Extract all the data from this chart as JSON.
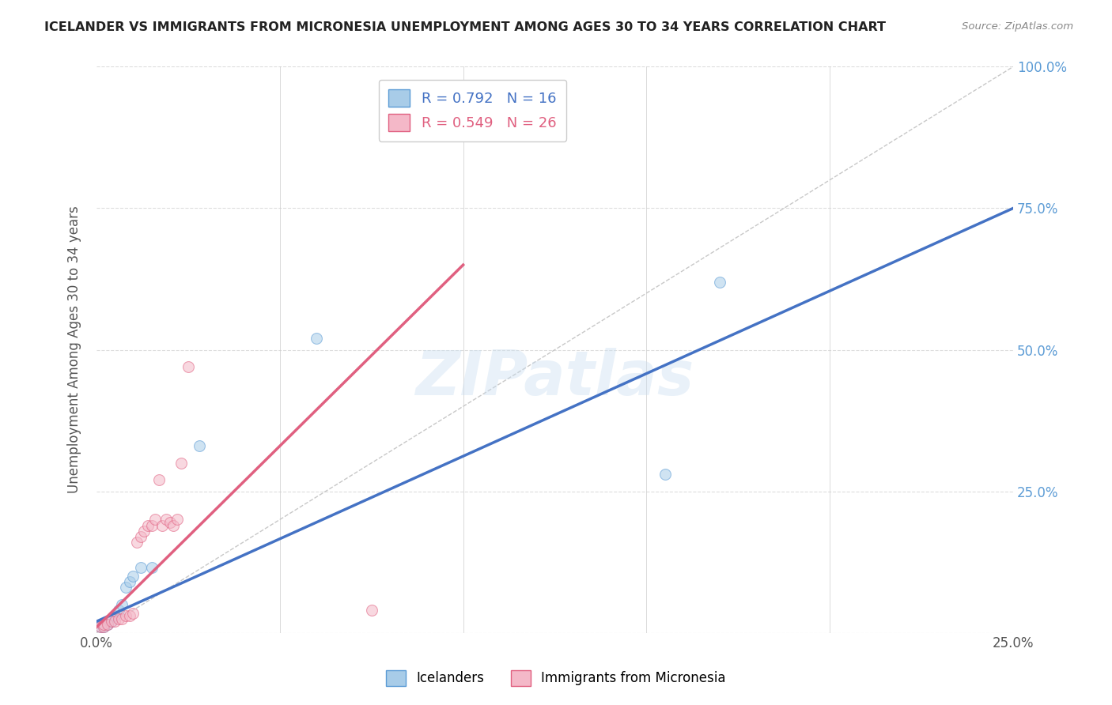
{
  "title": "ICELANDER VS IMMIGRANTS FROM MICRONESIA UNEMPLOYMENT AMONG AGES 30 TO 34 YEARS CORRELATION CHART",
  "source": "Source: ZipAtlas.com",
  "ylabel": "Unemployment Among Ages 30 to 34 years",
  "xlim": [
    0.0,
    0.25
  ],
  "ylim": [
    0.0,
    1.0
  ],
  "xticks": [
    0.0,
    0.05,
    0.1,
    0.15,
    0.2,
    0.25
  ],
  "yticks": [
    0.0,
    0.25,
    0.5,
    0.75,
    1.0
  ],
  "ytick_labels_right": [
    "",
    "25.0%",
    "50.0%",
    "75.0%",
    "100.0%"
  ],
  "xtick_labels": [
    "0.0%",
    "",
    "",
    "",
    "",
    "25.0%"
  ],
  "icelanders": {
    "x": [
      0.001,
      0.002,
      0.003,
      0.004,
      0.005,
      0.006,
      0.007,
      0.008,
      0.009,
      0.01,
      0.012,
      0.015,
      0.028,
      0.06,
      0.17,
      0.155
    ],
    "y": [
      0.01,
      0.01,
      0.015,
      0.02,
      0.03,
      0.04,
      0.05,
      0.08,
      0.09,
      0.1,
      0.115,
      0.115,
      0.33,
      0.52,
      0.62,
      0.28
    ],
    "color": "#a8cce8",
    "edge_color": "#5b9bd5",
    "R": 0.792,
    "N": 16,
    "trend_color": "#4472c4",
    "trend_x": [
      0.0,
      0.25
    ],
    "trend_y": [
      0.02,
      0.75
    ]
  },
  "micronesia": {
    "x": [
      0.001,
      0.002,
      0.002,
      0.003,
      0.004,
      0.005,
      0.006,
      0.007,
      0.008,
      0.009,
      0.01,
      0.011,
      0.012,
      0.013,
      0.014,
      0.015,
      0.016,
      0.017,
      0.018,
      0.019,
      0.02,
      0.021,
      0.022,
      0.023,
      0.025,
      0.075
    ],
    "y": [
      0.01,
      0.01,
      0.015,
      0.015,
      0.02,
      0.02,
      0.025,
      0.025,
      0.03,
      0.03,
      0.035,
      0.16,
      0.17,
      0.18,
      0.19,
      0.19,
      0.2,
      0.27,
      0.19,
      0.2,
      0.195,
      0.19,
      0.2,
      0.3,
      0.47,
      0.04
    ],
    "color": "#f4b8c8",
    "edge_color": "#e06080",
    "R": 0.549,
    "N": 26,
    "trend_color": "#e06080",
    "trend_x": [
      0.0,
      0.1
    ],
    "trend_y": [
      0.01,
      0.65
    ]
  },
  "legend_labels": [
    "Icelanders",
    "Immigrants from Micronesia"
  ],
  "marker_size": 100,
  "marker_alpha": 0.55,
  "background_color": "#ffffff",
  "grid_color": "#dddddd",
  "watermark": "ZIPatlas",
  "right_tick_color": "#5b9bd5"
}
